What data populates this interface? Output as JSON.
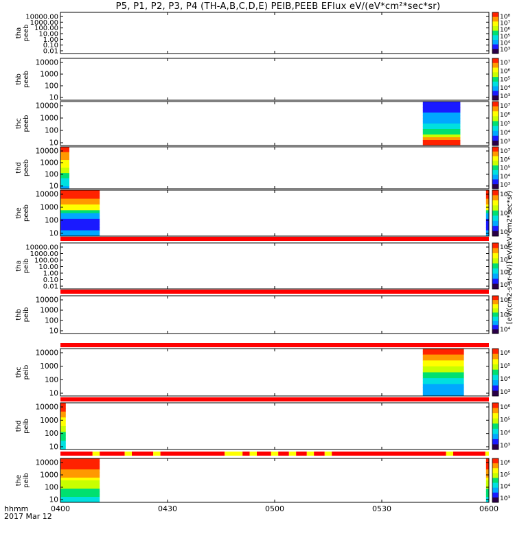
{
  "figure": {
    "title": "P5, P1, P2, P3, P4 (TH-A,B,C,D,E) PEIB,PEEB EFlux eV/(eV*cm²*sec*sr)",
    "footer_label_1": "hhmm",
    "footer_label_2": "2017 Mar 12",
    "x_ticks": [
      "0400",
      "0430",
      "0500",
      "0530",
      "0600"
    ],
    "colorbar_title": "[eV/(cm2-s-sr-eV)] eV/(eV*cm2*sec*sr)",
    "colormap": [
      "#2a0047",
      "#1a1aff",
      "#00a8ff",
      "#00e0e0",
      "#00e070",
      "#c8ff00",
      "#ffff00",
      "#ff9900",
      "#ff2200"
    ]
  },
  "chart_data": {
    "type": "heatmap",
    "x_range_minutes": [
      0,
      120
    ],
    "x_tick_times": [
      "04:00",
      "04:30",
      "05:00",
      "05:30",
      "06:00"
    ],
    "quality_bar_colors": {
      "ok": "#ff0000",
      "flag": "#ffff00"
    },
    "panels": [
      {
        "label_1": "tha",
        "label_2": "peeb",
        "y_ticks": [
          "10000.00",
          "1000.00",
          "100.00",
          "10.00",
          "1.00",
          "0.10",
          "0.01"
        ],
        "cbar_ticks": [
          "10⁸",
          "10⁷",
          "10⁶",
          "10⁵",
          "10⁴",
          "10³"
        ],
        "blocks": []
      },
      {
        "label_1": "thb",
        "label_2": "peeb",
        "y_ticks": [
          "10000",
          "1000",
          "100",
          "10"
        ],
        "cbar_ticks": [
          "10⁷",
          "10⁶",
          "10⁵",
          "10⁴",
          "10³"
        ],
        "blocks": []
      },
      {
        "label_1": "thc",
        "label_2": "peeb",
        "y_ticks": [
          "10000",
          "1000",
          "100",
          "10"
        ],
        "cbar_ticks": [
          "10⁷",
          "10⁶",
          "10⁵",
          "10⁴",
          "10³"
        ],
        "blocks": [
          {
            "start": 101.5,
            "end": 112,
            "profile": "thc_e"
          }
        ]
      },
      {
        "label_1": "thd",
        "label_2": "peeb",
        "y_ticks": [
          "10000",
          "1000",
          "100",
          "10"
        ],
        "cbar_ticks": [
          "10⁷",
          "10⁶",
          "10⁵",
          "10⁴",
          "10³"
        ],
        "blocks": [
          {
            "start": 0,
            "end": 2.5,
            "profile": "thd_e"
          }
        ]
      },
      {
        "label_1": "the",
        "label_2": "peeb",
        "y_ticks": [
          "10000",
          "1000",
          "100",
          "10"
        ],
        "cbar_ticks": [
          "10⁷",
          "10⁶",
          "10⁵"
        ],
        "blocks": [
          {
            "start": 0,
            "end": 11,
            "profile": "the_e"
          },
          {
            "start": 119.2,
            "end": 120,
            "profile": "the_e"
          }
        ]
      },
      {
        "label_1": "tha",
        "label_2": "peib",
        "y_ticks": [
          "10000.00",
          "1000.00",
          "100.00",
          "10.00",
          "1.00",
          "0.10",
          "0.01"
        ],
        "cbar_ticks": [
          "10⁶",
          "10⁵",
          "10⁴",
          "10³"
        ],
        "quality_segments": [
          {
            "start": 0,
            "end": 120,
            "flag": false
          }
        ],
        "blocks": []
      },
      {
        "label_1": "thb",
        "label_2": "peib",
        "y_ticks": [
          "10000",
          "1000",
          "100",
          "10"
        ],
        "cbar_ticks": [
          "10⁶",
          "10⁵",
          "10⁴"
        ],
        "quality_segments": [
          {
            "start": 0,
            "end": 120,
            "flag": false
          }
        ],
        "blocks": []
      },
      {
        "label_1": "thc",
        "label_2": "peib",
        "y_ticks": [
          "10000",
          "1000",
          "100",
          "10"
        ],
        "cbar_ticks": [
          "10⁶",
          "10⁵",
          "10⁴",
          "10³"
        ],
        "quality_segments": [
          {
            "start": 0,
            "end": 120,
            "flag": false
          }
        ],
        "blocks": [
          {
            "start": 101.5,
            "end": 113,
            "profile": "thc_i"
          }
        ]
      },
      {
        "label_1": "thd",
        "label_2": "peib",
        "y_ticks": [
          "10000",
          "1000",
          "100",
          "10"
        ],
        "cbar_ticks": [
          "10⁶",
          "10⁵",
          "10⁴",
          "10³"
        ],
        "quality_segments": [
          {
            "start": 0,
            "end": 120,
            "flag": false
          }
        ],
        "blocks": [
          {
            "start": 0,
            "end": 1.5,
            "profile": "thd_i"
          }
        ]
      },
      {
        "label_1": "the",
        "label_2": "peib",
        "y_ticks": [
          "10000",
          "1000",
          "100",
          "10"
        ],
        "cbar_ticks": [
          "10⁶",
          "10⁵",
          "10⁴",
          "10³"
        ],
        "quality_segments": [
          {
            "start": 0,
            "end": 9,
            "flag": false
          },
          {
            "start": 9,
            "end": 11,
            "flag": true
          },
          {
            "start": 11,
            "end": 18,
            "flag": false
          },
          {
            "start": 18,
            "end": 20,
            "flag": true
          },
          {
            "start": 20,
            "end": 26,
            "flag": false
          },
          {
            "start": 26,
            "end": 28,
            "flag": true
          },
          {
            "start": 28,
            "end": 46,
            "flag": false
          },
          {
            "start": 46,
            "end": 51,
            "flag": true
          },
          {
            "start": 51,
            "end": 53,
            "flag": false
          },
          {
            "start": 53,
            "end": 55,
            "flag": true
          },
          {
            "start": 55,
            "end": 59,
            "flag": false
          },
          {
            "start": 59,
            "end": 61,
            "flag": true
          },
          {
            "start": 61,
            "end": 64,
            "flag": false
          },
          {
            "start": 64,
            "end": 66,
            "flag": true
          },
          {
            "start": 66,
            "end": 69,
            "flag": false
          },
          {
            "start": 69,
            "end": 71,
            "flag": true
          },
          {
            "start": 71,
            "end": 74,
            "flag": false
          },
          {
            "start": 74,
            "end": 76,
            "flag": true
          },
          {
            "start": 76,
            "end": 108,
            "flag": false
          },
          {
            "start": 108,
            "end": 110,
            "flag": true
          },
          {
            "start": 110,
            "end": 119,
            "flag": false
          },
          {
            "start": 119,
            "end": 120,
            "flag": true
          }
        ],
        "blocks": [
          {
            "start": 0,
            "end": 11,
            "profile": "the_i"
          },
          {
            "start": 119.2,
            "end": 120,
            "profile": "the_i"
          }
        ]
      }
    ]
  }
}
